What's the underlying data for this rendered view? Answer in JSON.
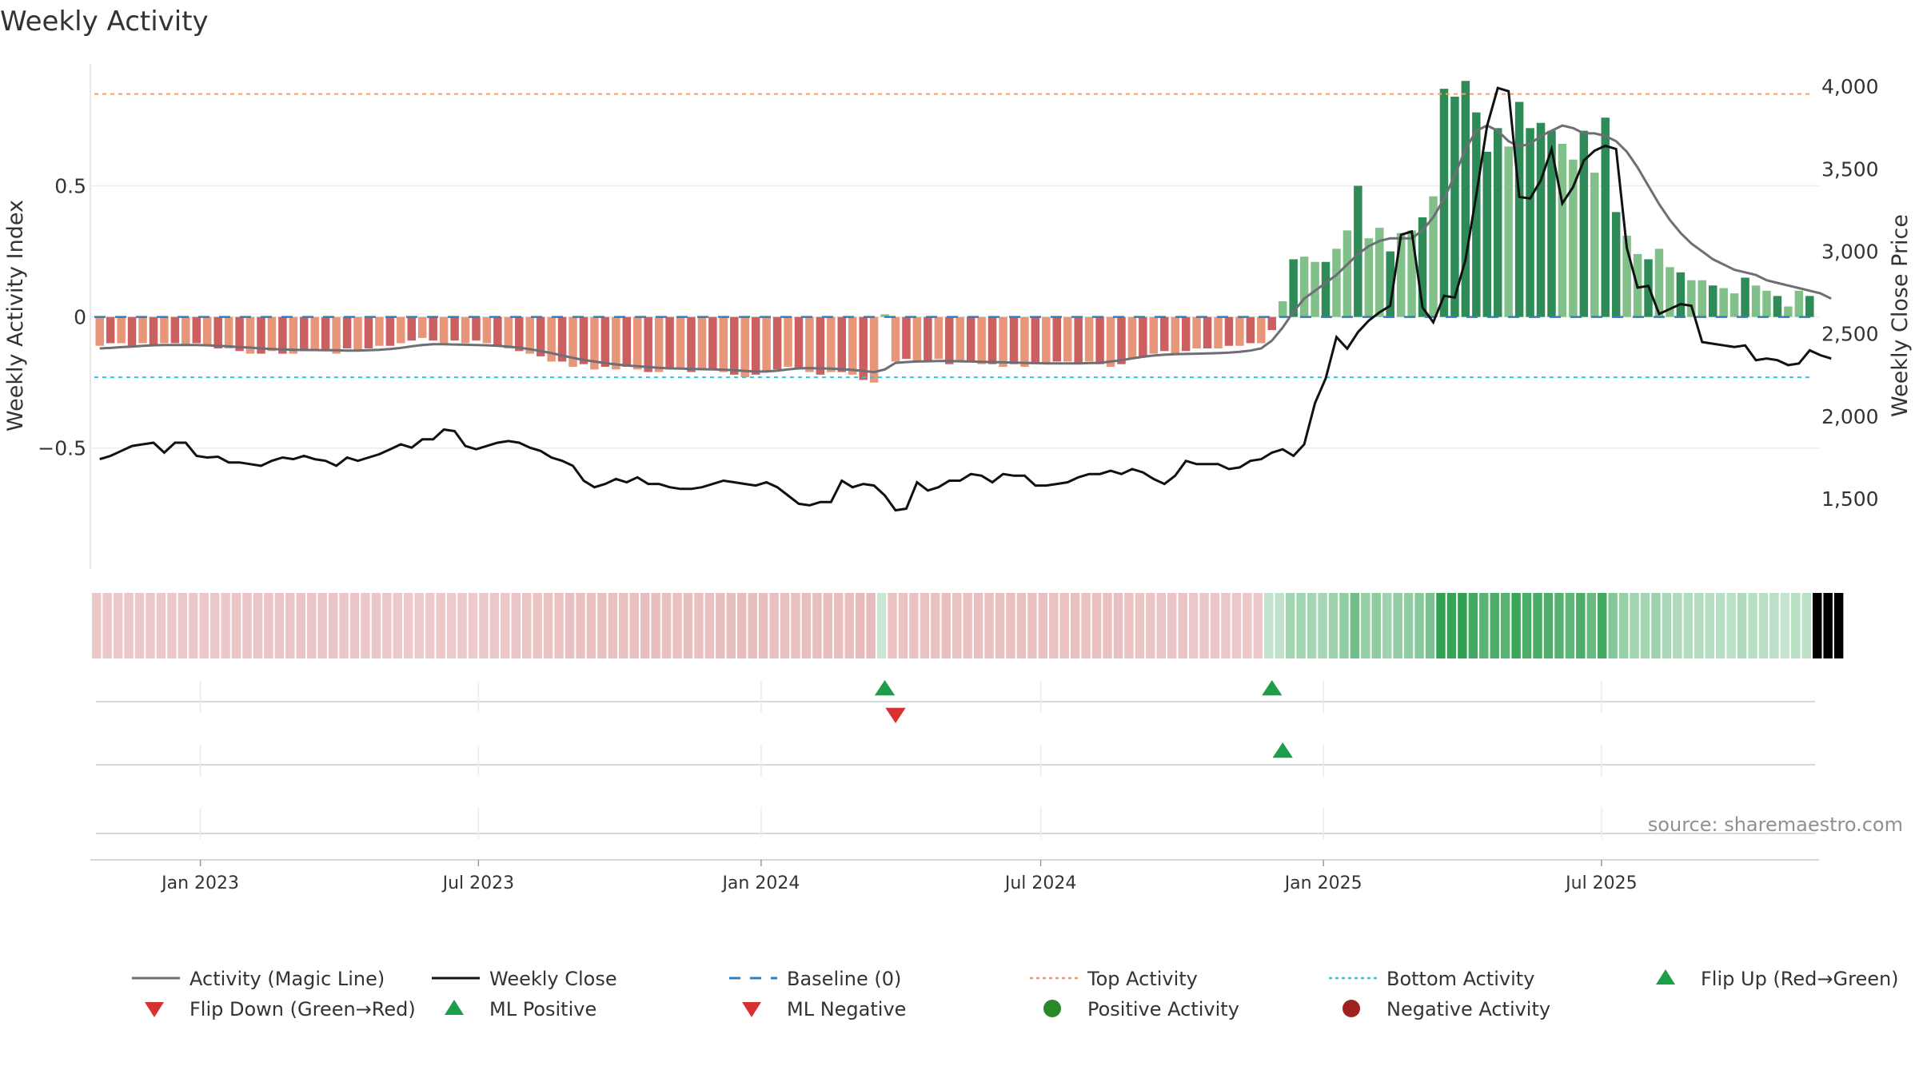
{
  "title": "Weekly Activity",
  "source": "source: sharemaestro.com",
  "colors": {
    "pos_strong": "#2e8b57",
    "pos_light": "#82c08a",
    "neg_strong": "#cc5f5f",
    "neg_light": "#e8967a",
    "magic_line": "#6e6e76",
    "close_line": "#111111",
    "baseline": "#2f7fbf",
    "top_line": "#f0a070",
    "bottom_line": "#3cc0d8",
    "flip_up": "#1e9e4a",
    "flip_down": "#d63030",
    "ml_pos": "#1e9e4a",
    "ml_neg": "#d63030",
    "pos_dot": "#2a8a2a",
    "neg_dot": "#a02020"
  },
  "chart_data": {
    "type": "bar",
    "title": "Weekly Activity",
    "x_start": "2022-10-24",
    "x_step_days": 7,
    "x_ticks": [
      "Jan 2023",
      "Jul 2023",
      "Jan 2024",
      "Jul 2024",
      "Jan 2025",
      "Jul 2025"
    ],
    "x_tick_dates": [
      "2023-01-01",
      "2023-07-01",
      "2024-01-01",
      "2024-07-01",
      "2025-01-01",
      "2025-07-01"
    ],
    "left_axis": {
      "label": "Weekly Activity Index",
      "range": [
        -0.97,
        0.98
      ],
      "ticks": [
        -0.5,
        0,
        0.5
      ],
      "tick_labels": [
        "−0.5",
        "0",
        "0.5"
      ]
    },
    "right_axis": {
      "label": "Weekly Close Price",
      "range": [
        1060,
        4160
      ],
      "ticks": [
        1500,
        2000,
        2500,
        3000,
        3500,
        4000
      ],
      "tick_labels": [
        "1,500",
        "2,000",
        "2,500",
        "3,000",
        "3,500",
        "4,000"
      ]
    },
    "top_activity": 0.85,
    "bottom_activity": -0.23,
    "baseline": 0,
    "activity": [
      -0.11,
      -0.1,
      -0.1,
      -0.11,
      -0.1,
      -0.11,
      -0.1,
      -0.1,
      -0.11,
      -0.1,
      -0.11,
      -0.12,
      -0.12,
      -0.13,
      -0.14,
      -0.14,
      -0.13,
      -0.14,
      -0.14,
      -0.13,
      -0.13,
      -0.13,
      -0.14,
      -0.12,
      -0.13,
      -0.12,
      -0.11,
      -0.11,
      -0.1,
      -0.09,
      -0.08,
      -0.09,
      -0.1,
      -0.09,
      -0.1,
      -0.09,
      -0.1,
      -0.11,
      -0.12,
      -0.13,
      -0.14,
      -0.15,
      -0.17,
      -0.17,
      -0.19,
      -0.18,
      -0.2,
      -0.19,
      -0.2,
      -0.19,
      -0.2,
      -0.21,
      -0.21,
      -0.2,
      -0.2,
      -0.21,
      -0.2,
      -0.2,
      -0.21,
      -0.22,
      -0.23,
      -0.22,
      -0.21,
      -0.2,
      -0.19,
      -0.2,
      -0.21,
      -0.22,
      -0.21,
      -0.21,
      -0.22,
      -0.24,
      -0.25,
      0.01,
      -0.17,
      -0.16,
      -0.17,
      -0.17,
      -0.16,
      -0.18,
      -0.17,
      -0.17,
      -0.18,
      -0.18,
      -0.19,
      -0.18,
      -0.19,
      -0.18,
      -0.18,
      -0.17,
      -0.17,
      -0.18,
      -0.17,
      -0.18,
      -0.19,
      -0.18,
      -0.16,
      -0.15,
      -0.14,
      -0.13,
      -0.14,
      -0.13,
      -0.12,
      -0.12,
      -0.12,
      -0.11,
      -0.11,
      -0.1,
      -0.1,
      -0.05,
      0.06,
      0.22,
      0.23,
      0.21,
      0.21,
      0.26,
      0.33,
      0.5,
      0.3,
      0.34,
      0.25,
      0.32,
      0.33,
      0.38,
      0.46,
      0.87,
      0.84,
      0.9,
      0.78,
      0.63,
      0.72,
      0.65,
      0.82,
      0.72,
      0.74,
      0.71,
      0.66,
      0.6,
      0.71,
      0.55,
      0.76,
      0.4,
      0.31,
      0.24,
      0.22,
      0.26,
      0.19,
      0.17,
      0.14,
      0.14,
      0.12,
      0.11,
      0.09,
      0.15,
      0.12,
      0.1,
      0.08,
      0.04,
      0.1,
      0.08
    ],
    "magic_line": [
      -0.12,
      -0.118,
      -0.115,
      -0.113,
      -0.11,
      -0.108,
      -0.107,
      -0.107,
      -0.107,
      -0.107,
      -0.108,
      -0.11,
      -0.112,
      -0.115,
      -0.117,
      -0.12,
      -0.122,
      -0.124,
      -0.125,
      -0.126,
      -0.126,
      -0.127,
      -0.127,
      -0.128,
      -0.128,
      -0.127,
      -0.125,
      -0.122,
      -0.118,
      -0.112,
      -0.107,
      -0.104,
      -0.104,
      -0.105,
      -0.106,
      -0.107,
      -0.108,
      -0.11,
      -0.113,
      -0.117,
      -0.123,
      -0.13,
      -0.138,
      -0.147,
      -0.156,
      -0.164,
      -0.17,
      -0.176,
      -0.181,
      -0.185,
      -0.188,
      -0.191,
      -0.194,
      -0.196,
      -0.197,
      -0.198,
      -0.199,
      -0.2,
      -0.201,
      -0.203,
      -0.206,
      -0.208,
      -0.208,
      -0.205,
      -0.2,
      -0.196,
      -0.195,
      -0.196,
      -0.197,
      -0.199,
      -0.202,
      -0.206,
      -0.21,
      -0.2,
      -0.175,
      -0.172,
      -0.17,
      -0.169,
      -0.168,
      -0.168,
      -0.169,
      -0.17,
      -0.171,
      -0.172,
      -0.173,
      -0.174,
      -0.175,
      -0.176,
      -0.177,
      -0.177,
      -0.177,
      -0.177,
      -0.176,
      -0.175,
      -0.17,
      -0.165,
      -0.158,
      -0.152,
      -0.147,
      -0.144,
      -0.142,
      -0.141,
      -0.14,
      -0.139,
      -0.138,
      -0.136,
      -0.133,
      -0.128,
      -0.12,
      -0.09,
      -0.04,
      0.02,
      0.07,
      0.1,
      0.13,
      0.16,
      0.2,
      0.24,
      0.27,
      0.29,
      0.3,
      0.3,
      0.3,
      0.33,
      0.38,
      0.45,
      0.54,
      0.64,
      0.71,
      0.73,
      0.71,
      0.67,
      0.65,
      0.66,
      0.69,
      0.71,
      0.73,
      0.72,
      0.7,
      0.7,
      0.69,
      0.67,
      0.63,
      0.57,
      0.5,
      0.43,
      0.37,
      0.32,
      0.28,
      0.25,
      0.22,
      0.2,
      0.18,
      0.17,
      0.16,
      0.14,
      0.13,
      0.12,
      0.11,
      0.1,
      0.09,
      0.07
    ],
    "weekly_close": [
      1740,
      1760,
      1790,
      1820,
      1830,
      1840,
      1780,
      1840,
      1840,
      1760,
      1750,
      1755,
      1720,
      1720,
      1710,
      1700,
      1730,
      1750,
      1740,
      1760,
      1740,
      1730,
      1700,
      1750,
      1730,
      1750,
      1770,
      1800,
      1830,
      1810,
      1860,
      1860,
      1920,
      1910,
      1820,
      1800,
      1820,
      1840,
      1850,
      1840,
      1810,
      1790,
      1750,
      1730,
      1700,
      1610,
      1570,
      1590,
      1620,
      1600,
      1630,
      1590,
      1590,
      1570,
      1560,
      1560,
      1570,
      1590,
      1610,
      1600,
      1590,
      1580,
      1600,
      1570,
      1520,
      1470,
      1460,
      1480,
      1480,
      1610,
      1570,
      1590,
      1580,
      1520,
      1430,
      1440,
      1600,
      1550,
      1570,
      1610,
      1610,
      1650,
      1640,
      1600,
      1650,
      1640,
      1640,
      1580,
      1580,
      1590,
      1600,
      1630,
      1650,
      1650,
      1670,
      1650,
      1680,
      1660,
      1620,
      1590,
      1640,
      1730,
      1710,
      1710,
      1710,
      1680,
      1690,
      1730,
      1740,
      1780,
      1800,
      1760,
      1830,
      2080,
      2230,
      2480,
      2410,
      2510,
      2580,
      2630,
      2670,
      3100,
      3120,
      2660,
      2570,
      2730,
      2720,
      2950,
      3340,
      3760,
      3990,
      3970,
      3330,
      3320,
      3430,
      3620,
      3290,
      3390,
      3550,
      3610,
      3640,
      3620,
      3020,
      2780,
      2790,
      2620,
      2650,
      2680,
      2670,
      2450,
      2440,
      2430,
      2420,
      2430,
      2340,
      2350,
      2340,
      2310,
      2320,
      2400,
      2370,
      2350
    ],
    "cells": [
      1,
      1,
      1,
      1,
      1,
      1,
      1,
      1,
      1,
      1,
      1,
      1,
      1,
      1,
      1,
      1,
      1,
      1,
      1,
      1,
      1,
      1,
      1,
      1,
      1,
      1,
      1,
      1,
      1,
      1,
      1,
      1,
      1,
      1,
      1,
      1,
      1,
      1,
      1,
      1,
      1,
      1,
      1,
      1,
      1,
      1,
      1,
      1,
      1,
      1,
      1,
      1,
      1,
      1,
      1,
      1,
      1,
      1,
      1,
      1,
      1,
      1,
      1,
      1,
      1,
      1,
      1,
      1,
      1,
      1,
      1,
      1,
      1,
      0,
      1,
      1,
      1,
      1,
      1,
      1,
      1,
      1,
      1,
      1,
      1,
      1,
      1,
      1,
      1,
      1,
      1,
      1,
      1,
      1,
      1,
      1,
      1,
      1,
      1,
      1,
      1,
      1,
      1,
      1,
      1,
      1,
      1,
      1,
      1,
      0,
      0,
      0,
      0,
      0,
      0,
      0,
      0,
      0,
      0,
      0,
      0,
      0,
      0,
      0,
      0,
      0,
      0,
      0,
      0,
      0,
      0,
      0,
      0,
      0,
      0,
      0,
      0,
      0,
      0,
      0,
      0,
      0,
      0,
      0,
      0,
      0,
      0,
      0,
      0,
      0,
      0,
      0,
      0,
      0,
      0,
      0,
      0,
      0,
      0,
      0,
      0,
      0,
      0
    ],
    "events_row1": [
      {
        "week": 73,
        "type": "up"
      },
      {
        "week": 74,
        "type": "down"
      },
      {
        "week": 109,
        "type": "up"
      }
    ],
    "events_row2": [
      {
        "week": 110,
        "type": "up"
      }
    ]
  },
  "legend": [
    {
      "label": "Activity (Magic Line)",
      "style": "line",
      "color": "#6e6e76"
    },
    {
      "label": "Weekly Close",
      "style": "line",
      "color": "#111111"
    },
    {
      "label": "Baseline (0)",
      "style": "dash",
      "color": "#2f7fbf"
    },
    {
      "label": "Top Activity",
      "style": "dot",
      "color": "#f0a070"
    },
    {
      "label": "Bottom Activity",
      "style": "dot",
      "color": "#3cc0d8"
    },
    {
      "label": "Flip Up (Red→Green)",
      "style": "tri-up",
      "color": "#1e9e4a"
    },
    {
      "label": "Flip Down (Green→Red)",
      "style": "tri-down",
      "color": "#d63030"
    },
    {
      "label": "ML Positive",
      "style": "tri-up",
      "color": "#1e9e4a"
    },
    {
      "label": "ML Negative",
      "style": "tri-down",
      "color": "#d63030"
    },
    {
      "label": "Positive Activity",
      "style": "circle",
      "color": "#2a8a2a"
    },
    {
      "label": "Negative Activity",
      "style": "circle",
      "color": "#a02020"
    }
  ]
}
